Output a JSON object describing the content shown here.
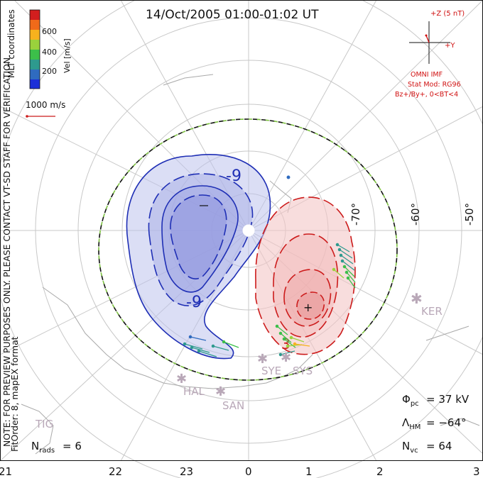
{
  "title": "14/Oct/2005 01:00-01:02 UT",
  "colorbar": {
    "label": "Vel [m/s]",
    "ticks": [
      "600",
      "400",
      "200"
    ],
    "colors": [
      "#d21e1e",
      "#f06a1a",
      "#f7b21e",
      "#9ad23c",
      "#3cbf4a",
      "#2e9a8e",
      "#2f6bbf",
      "#1b2fd8"
    ]
  },
  "coord_label": "MLT coordinates",
  "vector_scale": "1000 m/s",
  "note": "NOTE: FOR PREVIEW PURPOSES ONLY. PLEASE CONTACT VT-SD STAFF FOR VERIFICATION.",
  "fitorder": "FitOrder: 8, mapEX format",
  "imf": {
    "z_label": "+Z (5 nT)",
    "y_label": "+Y",
    "source": "OMNI IMF",
    "model1": "Stat Mod: RG96",
    "model2": "Bz+/By+, 0<BT<4"
  },
  "stats": {
    "phi_label": "Φ",
    "phi_sub": "pc",
    "phi_value": "= 37 kV",
    "lambda_label": "Λ",
    "lambda_sub": "HM",
    "lambda_value": "= −64°",
    "nvc_label": "N",
    "nvc_sub": "vc",
    "nvc_value": "= 64",
    "nrads_label": "N",
    "nrads_sub": "rads",
    "nrads_value": "= 6"
  },
  "lat_labels": [
    "-70°",
    "-60°",
    "-50°"
  ],
  "mlt_ticks": [
    "21",
    "22",
    "23",
    "0",
    "1",
    "2",
    "3"
  ],
  "contours": {
    "neg_label": "-9",
    "pos_label": "3"
  },
  "stations": [
    "KER",
    "HAL",
    "SAN",
    "SYE",
    "SYS",
    "TIG"
  ],
  "colors": {
    "positive": "#cc1b1b",
    "negative": "#1f2fb5",
    "boundary_dash": "#7ec242",
    "grid": "#c8c8c8",
    "imf_red": "#d01010"
  }
}
